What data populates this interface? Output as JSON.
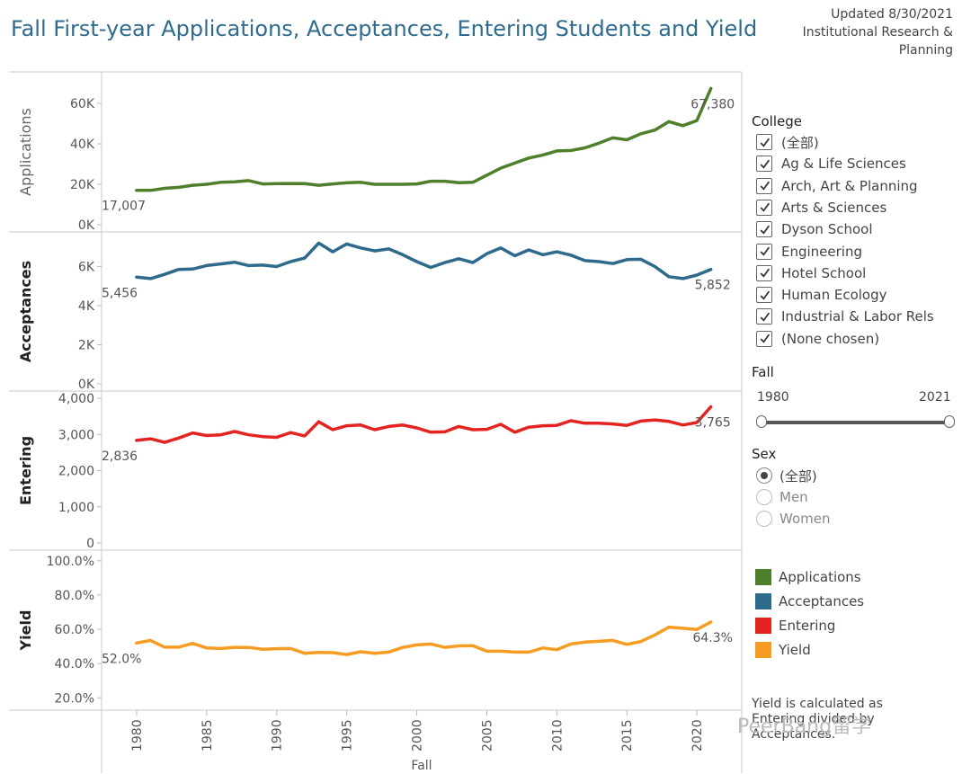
{
  "header": {
    "title": "Fall First-year Applications, Acceptances, Entering Students and Yield",
    "updated_lines": [
      "Updated 8/30/2021",
      "Institutional Research &",
      "Planning"
    ]
  },
  "filters": {
    "college_title": "College",
    "college_items": [
      "(全部)",
      "Ag & Life Sciences",
      "Arch, Art & Planning",
      "Arts & Sciences",
      "Dyson School",
      "Engineering",
      "Hotel School",
      "Human Ecology",
      "Industrial & Labor Rels",
      "(None chosen)"
    ],
    "fall_title": "Fall",
    "fall_min": "1980",
    "fall_max": "2021",
    "sex_title": "Sex",
    "sex_options": [
      "(全部)",
      "Men",
      "Women"
    ],
    "sex_selected": 0
  },
  "legend": {
    "items": [
      {
        "label": "Applications",
        "color": "#4e7f2a"
      },
      {
        "label": "Acceptances",
        "color": "#2e6a8c"
      },
      {
        "label": "Entering",
        "color": "#e32421"
      },
      {
        "label": "Yield",
        "color": "#f59c22"
      }
    ]
  },
  "note": "Yield is calculated as Entering divided by Acceptances.",
  "watermark": "PeerBang留学",
  "chart_data": {
    "type": "line",
    "title": "Fall First-year Applications, Acceptances, Entering Students and Yield",
    "xlabel": "Fall",
    "x": [
      1980,
      1981,
      1982,
      1983,
      1984,
      1985,
      1986,
      1987,
      1988,
      1989,
      1990,
      1991,
      1992,
      1993,
      1994,
      1995,
      1996,
      1997,
      1998,
      1999,
      2000,
      2001,
      2002,
      2003,
      2004,
      2005,
      2006,
      2007,
      2008,
      2009,
      2010,
      2011,
      2012,
      2013,
      2014,
      2015,
      2016,
      2017,
      2018,
      2019,
      2020,
      2021
    ],
    "x_ticks": [
      "1980",
      "1985",
      "1990",
      "1995",
      "2000",
      "2005",
      "2010",
      "2015",
      "2020"
    ],
    "series": [
      {
        "name": "Applications",
        "color": "#4e7f2a",
        "values": [
          17007,
          17000,
          18000,
          18500,
          19500,
          20000,
          21000,
          21200,
          21800,
          20200,
          20300,
          20400,
          20300,
          19500,
          20200,
          20700,
          21000,
          20000,
          20000,
          20000,
          20200,
          21500,
          21500,
          20800,
          21000,
          24500,
          28000,
          30500,
          33000,
          34500,
          36500,
          36700,
          38000,
          40300,
          43000,
          42000,
          45000,
          46800,
          51000,
          49000,
          51500,
          67380
        ],
        "ylim": [
          0,
          72000
        ],
        "ticks": [
          0,
          20000,
          40000,
          60000
        ],
        "tick_labels": [
          "0K",
          "20K",
          "40K",
          "60K"
        ],
        "ylabel": "Applications",
        "first_label": "17,007",
        "last_label": "67,380"
      },
      {
        "name": "Acceptances",
        "color": "#2e6a8c",
        "values": [
          5456,
          5380,
          5600,
          5850,
          5870,
          6050,
          6130,
          6220,
          6050,
          6070,
          6000,
          6250,
          6430,
          7200,
          6750,
          7150,
          6950,
          6800,
          6900,
          6600,
          6250,
          5950,
          6200,
          6400,
          6200,
          6650,
          6950,
          6550,
          6850,
          6600,
          6750,
          6580,
          6300,
          6250,
          6150,
          6350,
          6370,
          6000,
          5480,
          5380,
          5560,
          5852
        ],
        "ylim": [
          0,
          7400
        ],
        "ticks": [
          0,
          2000,
          4000,
          6000
        ],
        "tick_labels": [
          "0K",
          "2K",
          "4K",
          "6K"
        ],
        "ylabel": "Acceptances",
        "first_label": "5,456",
        "last_label": "5,852"
      },
      {
        "name": "Entering",
        "color": "#e32421",
        "values": [
          2836,
          2880,
          2780,
          2900,
          3040,
          2970,
          2990,
          3080,
          2990,
          2940,
          2920,
          3050,
          2960,
          3350,
          3130,
          3240,
          3260,
          3130,
          3220,
          3260,
          3180,
          3060,
          3070,
          3220,
          3130,
          3140,
          3280,
          3060,
          3200,
          3240,
          3250,
          3380,
          3310,
          3310,
          3290,
          3250,
          3370,
          3400,
          3360,
          3260,
          3330,
          3765
        ],
        "ylim": [
          0,
          4000
        ],
        "ticks": [
          0,
          1000,
          2000,
          3000,
          4000
        ],
        "tick_labels": [
          "0",
          "1,000",
          "2,000",
          "3,000",
          "4,000"
        ],
        "ylabel": "Entering",
        "first_label": "2,836",
        "last_label": "3,765"
      },
      {
        "name": "Yield",
        "color": "#f59c22",
        "values": [
          52.0,
          53.5,
          49.6,
          49.6,
          51.8,
          49.1,
          48.8,
          49.5,
          49.4,
          48.4,
          48.7,
          48.8,
          46.0,
          46.5,
          46.4,
          45.3,
          46.9,
          46.0,
          46.7,
          49.4,
          50.9,
          51.4,
          49.5,
          50.3,
          50.5,
          47.2,
          47.2,
          46.7,
          46.7,
          49.1,
          48.1,
          51.4,
          52.5,
          53.0,
          53.5,
          51.2,
          52.9,
          56.7,
          61.3,
          60.6,
          59.9,
          64.3
        ],
        "ylim": [
          17,
          102
        ],
        "ticks": [
          20,
          40,
          60,
          80,
          100
        ],
        "tick_labels": [
          "20.0%",
          "40.0%",
          "60.0%",
          "80.0%",
          "100.0%"
        ],
        "ylabel": "Yield",
        "first_label": "52.0%",
        "last_label": "64.3%"
      }
    ]
  }
}
